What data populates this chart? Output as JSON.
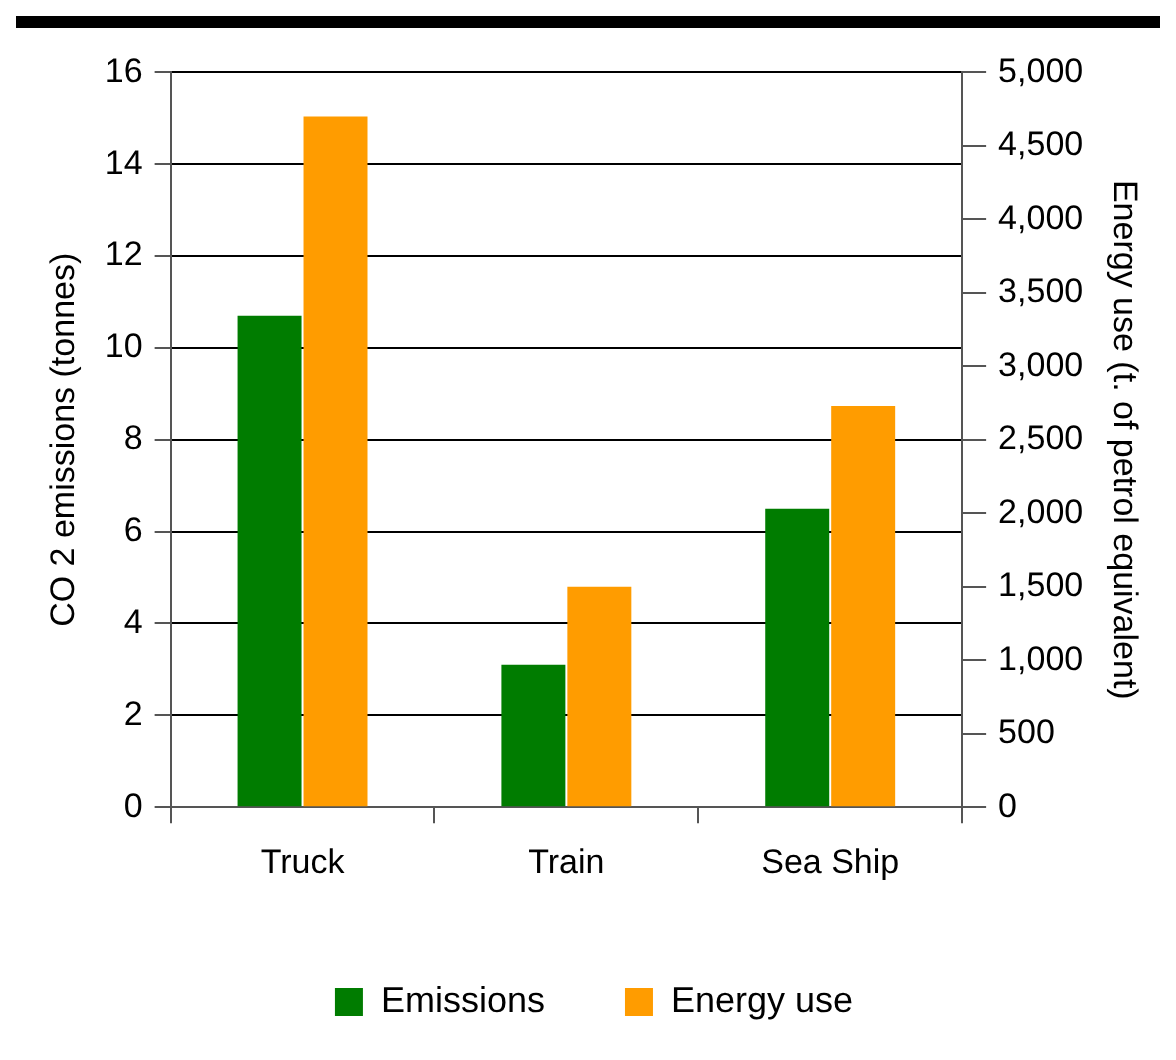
{
  "chart_data": {
    "type": "bar",
    "categories": [
      "Truck",
      "Train",
      "Sea Ship"
    ],
    "ylabel": "CO 2 emissions (tonnes)",
    "y2label": "Energy use (t. of petrol equivalent)",
    "series": [
      {
        "name": "Emissions",
        "color": "#007c00",
        "values": [
          10.7,
          3.1,
          6.5
        ]
      },
      {
        "name": "Energy use",
        "color": "#ff9c00",
        "values": [
          4700,
          1500,
          2730
        ],
        "axis": "y2"
      }
    ],
    "ylim": [
      0,
      16
    ],
    "yticks": [
      0,
      2,
      4,
      6,
      8,
      10,
      12,
      14,
      16
    ],
    "y2lim": [
      0,
      5000
    ],
    "y2ticks": [
      {
        "value": 0,
        "label": "0"
      },
      {
        "value": 500,
        "label": "500"
      },
      {
        "value": 1000,
        "label": "1,000"
      },
      {
        "value": 1500,
        "label": "1,500"
      },
      {
        "value": 2000,
        "label": "2,000"
      },
      {
        "value": 2500,
        "label": "2,500"
      },
      {
        "value": 3000,
        "label": "3,000"
      },
      {
        "value": 3500,
        "label": "3,500"
      },
      {
        "value": 4000,
        "label": "4,000"
      },
      {
        "value": 4500,
        "label": "4,500"
      },
      {
        "value": 5000,
        "label": "5,000"
      }
    ],
    "grid": "y",
    "legend": "bottom"
  }
}
